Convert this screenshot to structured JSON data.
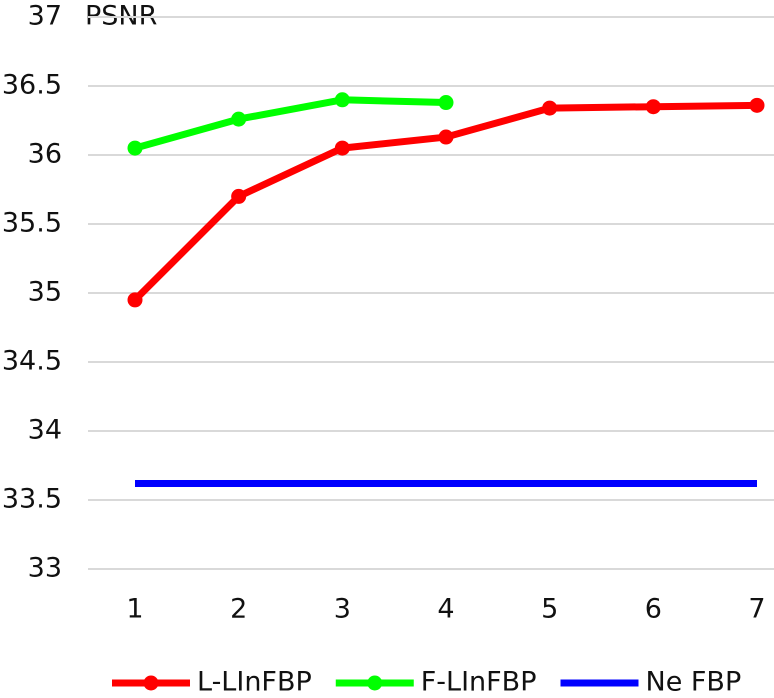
{
  "chart_data": {
    "type": "line",
    "title": "PSNR",
    "categories": [
      "1",
      "2",
      "3",
      "4",
      "5",
      "6",
      "7"
    ],
    "series": [
      {
        "name": "L-LInFBP",
        "color": "#ff0000",
        "markers": true,
        "values": [
          34.95,
          35.7,
          36.05,
          36.13,
          36.34,
          36.35,
          36.36
        ]
      },
      {
        "name": "F-LInFBP",
        "color": "#00ff00",
        "markers": true,
        "values": [
          36.05,
          36.26,
          36.4,
          36.38,
          null,
          null,
          null
        ]
      },
      {
        "name": "Ne FBP",
        "color": "#0000ff",
        "markers": false,
        "values": [
          33.62,
          33.62,
          33.62,
          33.62,
          33.62,
          33.62,
          33.62
        ]
      }
    ],
    "ylim": [
      33,
      37
    ],
    "yticks": [
      33,
      33.5,
      34,
      34.5,
      35,
      35.5,
      36,
      36.5,
      37
    ],
    "grid": true,
    "legend": "bottom"
  }
}
